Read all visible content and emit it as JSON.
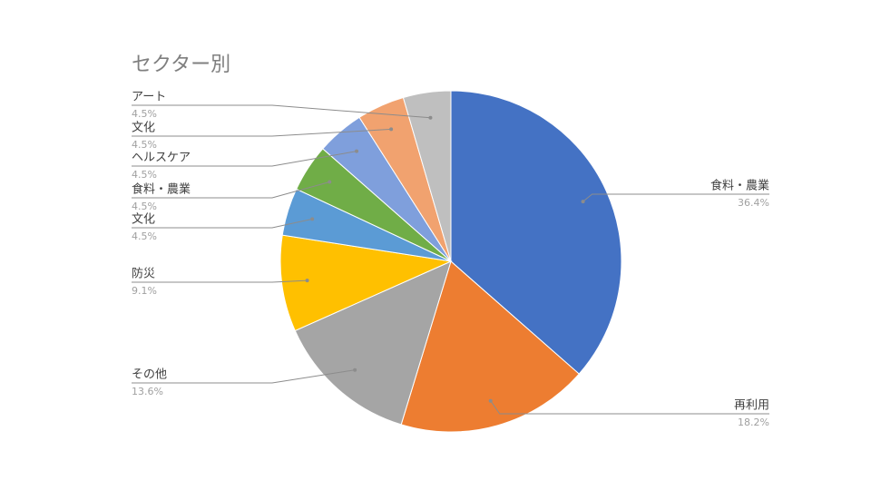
{
  "chart_data": {
    "type": "pie",
    "title": "セクター別",
    "categories": [
      "食料・農業",
      "再利用",
      "その他",
      "防災",
      "文化",
      "食料・農業",
      "ヘルスケア",
      "文化",
      "アート"
    ],
    "values": [
      36.4,
      18.2,
      13.6,
      9.1,
      4.5,
      4.5,
      4.5,
      4.5,
      4.5
    ],
    "value_labels": [
      "36.4%",
      "18.2%",
      "13.6%",
      "9.1%",
      "4.5%",
      "4.5%",
      "4.5%",
      "4.5%",
      "4.5%"
    ],
    "colors": [
      "#4472c4",
      "#ed7d31",
      "#a5a5a5",
      "#ffc000",
      "#5b9bd5",
      "#70ad47",
      "#7f9fdc",
      "#f1a26f",
      "#bfbfbf"
    ]
  }
}
